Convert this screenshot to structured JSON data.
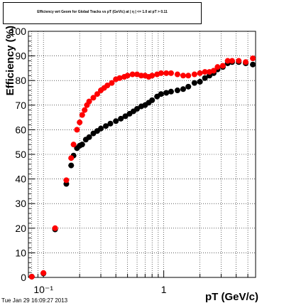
{
  "chart_data": {
    "type": "scatter",
    "title": "Efficiency wrt Geom for Global Tracks vs pT (GeV/c) at | η | <= 1.0 at pT > 0.11",
    "xlabel": "pT (GeV/c)",
    "ylabel": "Efficiency (%)",
    "xscale": "log",
    "xlim": [
      0.075,
      5.8
    ],
    "ylim": [
      0,
      100
    ],
    "yticks": [
      0,
      10,
      20,
      30,
      40,
      50,
      60,
      70,
      80,
      90,
      100
    ],
    "xticks": [
      {
        "value": 0.1,
        "label": "10⁻¹"
      },
      {
        "value": 1,
        "label": "1"
      }
    ],
    "grid": true,
    "series": [
      {
        "color": "#000000",
        "points": [
          [
            0.08,
            0.3
          ],
          [
            0.1,
            1.6
          ],
          [
            0.125,
            19.5
          ],
          [
            0.155,
            38
          ],
          [
            0.17,
            45.5
          ],
          [
            0.178,
            49.5
          ],
          [
            0.19,
            52.5
          ],
          [
            0.2,
            53.5
          ],
          [
            0.21,
            54
          ],
          [
            0.225,
            56
          ],
          [
            0.24,
            57
          ],
          [
            0.26,
            58.5
          ],
          [
            0.28,
            59.5
          ],
          [
            0.3,
            60.5
          ],
          [
            0.33,
            61.5
          ],
          [
            0.36,
            62.5
          ],
          [
            0.4,
            63.5
          ],
          [
            0.44,
            64.5
          ],
          [
            0.48,
            65.5
          ],
          [
            0.52,
            66.5
          ],
          [
            0.56,
            67.5
          ],
          [
            0.6,
            68.5
          ],
          [
            0.65,
            69.5
          ],
          [
            0.7,
            70
          ],
          [
            0.75,
            71
          ],
          [
            0.8,
            72
          ],
          [
            0.88,
            73.5
          ],
          [
            0.95,
            74.5
          ],
          [
            1.05,
            75
          ],
          [
            1.15,
            75.5
          ],
          [
            1.3,
            76
          ],
          [
            1.45,
            76.5
          ],
          [
            1.6,
            77.5
          ],
          [
            1.8,
            79
          ],
          [
            2.0,
            79.5
          ],
          [
            2.2,
            81
          ],
          [
            2.4,
            82
          ],
          [
            2.6,
            83
          ],
          [
            2.8,
            84.5
          ],
          [
            3.1,
            85.5
          ],
          [
            3.4,
            87
          ],
          [
            3.7,
            87.5
          ],
          [
            4.2,
            87.5
          ],
          [
            4.8,
            87
          ],
          [
            5.5,
            86.5
          ]
        ]
      },
      {
        "color": "#ff0000",
        "points": [
          [
            0.08,
            0.3
          ],
          [
            0.1,
            1.8
          ],
          [
            0.125,
            20
          ],
          [
            0.155,
            39.5
          ],
          [
            0.17,
            48.5
          ],
          [
            0.178,
            54
          ],
          [
            0.19,
            60
          ],
          [
            0.2,
            63
          ],
          [
            0.21,
            66
          ],
          [
            0.22,
            68
          ],
          [
            0.23,
            70
          ],
          [
            0.24,
            71.5
          ],
          [
            0.26,
            73
          ],
          [
            0.28,
            74.5
          ],
          [
            0.3,
            76
          ],
          [
            0.32,
            77
          ],
          [
            0.34,
            78
          ],
          [
            0.37,
            79
          ],
          [
            0.4,
            80.5
          ],
          [
            0.43,
            81
          ],
          [
            0.47,
            81.5
          ],
          [
            0.5,
            82
          ],
          [
            0.55,
            82.5
          ],
          [
            0.6,
            82.5
          ],
          [
            0.65,
            82
          ],
          [
            0.7,
            82
          ],
          [
            0.75,
            81.5
          ],
          [
            0.8,
            82
          ],
          [
            0.88,
            82.5
          ],
          [
            0.95,
            83
          ],
          [
            1.05,
            83
          ],
          [
            1.15,
            83
          ],
          [
            1.3,
            82.5
          ],
          [
            1.45,
            82
          ],
          [
            1.6,
            82
          ],
          [
            1.8,
            82.5
          ],
          [
            2.0,
            83
          ],
          [
            2.2,
            83.5
          ],
          [
            2.4,
            83.5
          ],
          [
            2.6,
            84
          ],
          [
            2.8,
            85.5
          ],
          [
            3.1,
            86
          ],
          [
            3.4,
            88
          ],
          [
            3.7,
            88
          ],
          [
            4.2,
            88
          ],
          [
            4.8,
            87.5
          ],
          [
            5.5,
            89
          ]
        ]
      }
    ]
  },
  "timestamp": "Tue Jan 29 16:09:27 2013"
}
